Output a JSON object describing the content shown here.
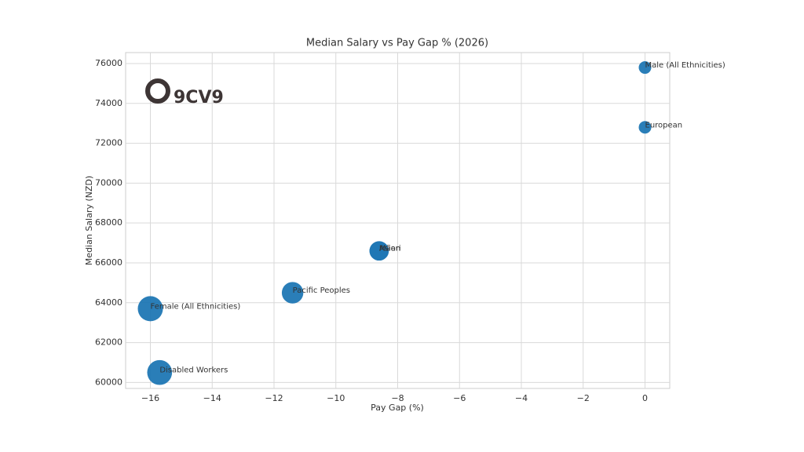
{
  "logo": "9CV9",
  "chart_data": {
    "type": "scatter",
    "title": "Median Salary vs Pay Gap % (2026)",
    "x_label": "Pay Gap (%)",
    "y_label": "Median Salary (NZD)",
    "series": [
      {
        "color": "#1f77b4",
        "labels": [
          "Male (All Ethnicities)",
          "European",
          "Māori",
          "Asian",
          "Pacific Peoples",
          "Female (All Ethnicities)",
          "Disabled Workers"
        ],
        "x": [
          0,
          0,
          -8.6,
          -8.6,
          -11.4,
          -16.0,
          -15.7
        ],
        "values": [
          75800,
          72800,
          66600,
          66600,
          64500,
          63700,
          60500
        ]
      }
    ],
    "xlim": [
      -16.8,
      0.8
    ],
    "ylim": [
      59700,
      76550
    ],
    "xticks": [
      {
        "value": -16,
        "label": "−16"
      },
      {
        "value": -14,
        "label": "−14"
      },
      {
        "value": -12,
        "label": "−12"
      },
      {
        "value": -10,
        "label": "−10"
      },
      {
        "value": -8,
        "label": "−8"
      },
      {
        "value": -6,
        "label": "−6"
      },
      {
        "value": -4,
        "label": "−4"
      },
      {
        "value": -2,
        "label": "−2"
      },
      0
    ],
    "yticks": [
      60000,
      62000,
      64000,
      66000,
      68000,
      70000,
      72000,
      74000,
      76000
    ],
    "grid": true
  }
}
